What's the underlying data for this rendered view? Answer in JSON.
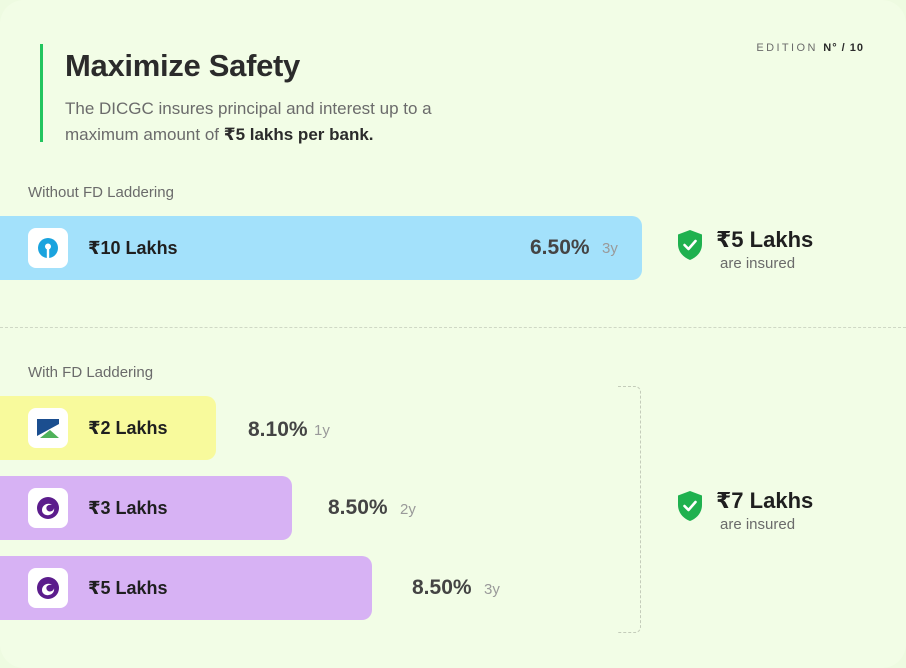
{
  "header": {
    "title": "Maximize Safety",
    "subtitle_part1": "The DICGC insures principal and interest up to a maximum amount of ",
    "subtitle_bold": "₹5 lakhs per bank.",
    "edition_label": "EDITION ",
    "edition_number": "N° / 10"
  },
  "without": {
    "label": "Without FD Laddering",
    "bars": [
      {
        "amount": "₹10 Lakhs",
        "rate": "6.50%",
        "term": "3y",
        "color": "#a3e1fb",
        "logo": "sbi-icon"
      }
    ],
    "insured": {
      "amount": "₹5 Lakhs",
      "text": "are insured"
    }
  },
  "with": {
    "label": "With FD Laddering",
    "bars": [
      {
        "amount": "₹2 Lakhs",
        "rate": "8.10%",
        "term": "1y",
        "color": "#f8fa9c",
        "logo": "mountain-bank-icon"
      },
      {
        "amount": "₹3 Lakhs",
        "rate": "8.50%",
        "term": "2y",
        "color": "#d7b2f4",
        "logo": "swirl-bank-icon"
      },
      {
        "amount": "₹5 Lakhs",
        "rate": "8.50%",
        "term": "3y",
        "color": "#d7b2f4",
        "logo": "swirl-bank-icon"
      }
    ],
    "insured": {
      "amount": "₹7 Lakhs",
      "text": "are insured"
    }
  },
  "colors": {
    "accent_green": "#22c55e",
    "shield_green": "#1fb14f"
  }
}
